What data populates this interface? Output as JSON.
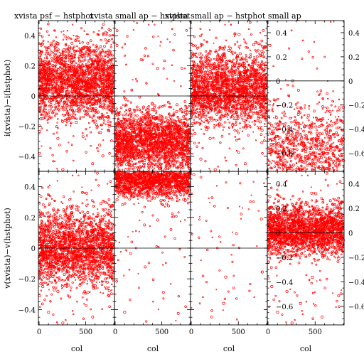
{
  "chart_data": {
    "type": "scatter",
    "titles": [
      "xvista psf − hstphot",
      "xvista small ap − hstphot",
      "xvista small ap − hstphot small ap"
    ],
    "ylabels": [
      "i(xvista)−i(hstphot)",
      "v(xvista)−v(hstphot)"
    ],
    "xlabel": "col",
    "xlim": [
      0,
      800
    ],
    "xticks": [
      "0",
      "500"
    ],
    "ylim_left": [
      -0.5,
      0.5
    ],
    "ylim_right": [
      -0.75,
      0.5
    ],
    "yticks_left": [
      "−0.4",
      "−0.2",
      "0",
      "0.2",
      "0.4"
    ],
    "yticks_right": [
      "−0.6",
      "−0.4",
      "−0.2",
      "0",
      "0.2",
      "0.4"
    ],
    "series_color": "#ff0000",
    "panels": [
      {
        "row": 0,
        "col": 0,
        "center": 0.1,
        "spread": 0.13,
        "density": 1.0,
        "axis": "left"
      },
      {
        "row": 0,
        "col": 1,
        "center": -0.3,
        "spread": 0.1,
        "density": 1.0,
        "axis": "left"
      },
      {
        "row": 0,
        "col": 2,
        "center": 0.05,
        "spread": 0.12,
        "density": 1.0,
        "axis": "left"
      },
      {
        "row": 0,
        "col": 3,
        "center": -0.6,
        "spread": 0.2,
        "density": 0.45,
        "axis": "right"
      },
      {
        "row": 1,
        "col": 0,
        "center": 0.0,
        "spread": 0.12,
        "density": 1.0,
        "axis": "left"
      },
      {
        "row": 1,
        "col": 1,
        "center": 0.45,
        "spread": 0.06,
        "density": 0.8,
        "axis": "left"
      },
      {
        "row": 1,
        "col": 2,
        "center": 0.0,
        "spread": 0.5,
        "density": 0.05,
        "axis": "left"
      },
      {
        "row": 1,
        "col": 3,
        "center": 0.02,
        "spread": 0.1,
        "density": 1.0,
        "axis": "right"
      }
    ]
  }
}
